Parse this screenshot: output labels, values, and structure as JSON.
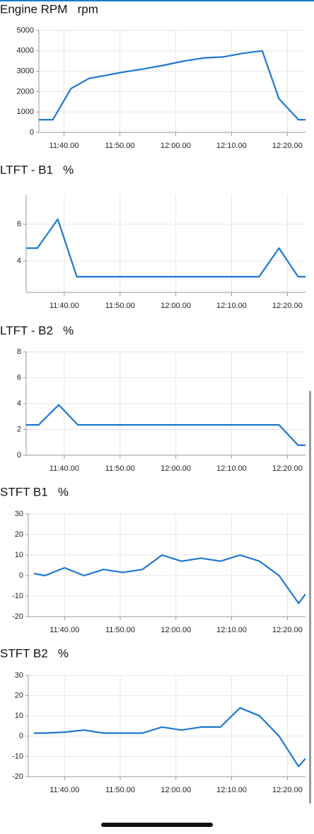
{
  "chart_data": [
    {
      "type": "line",
      "title": "Engine RPM   rpm",
      "color": "#1d78d2",
      "grid": true,
      "x": [
        "11:35.30",
        "11:38.00",
        "11:41.15",
        "11:44.30",
        "11:47.30",
        "11:50.30",
        "11:54.00",
        "11:58.00",
        "12:01.30",
        "12:05.00",
        "12:08.30",
        "12:12.00",
        "12:15.30",
        "12:18.30",
        "12:22.00",
        "12:23.15"
      ],
      "values": [
        620,
        620,
        2150,
        2650,
        2800,
        2950,
        3100,
        3300,
        3500,
        3650,
        3700,
        3880,
        4000,
        1650,
        620,
        620
      ],
      "xlim": [
        "11:35.30",
        "12:23.15"
      ],
      "xticks": [
        "11:40.00",
        "11:50.00",
        "12:00.00",
        "12:10.00",
        "12:20.00"
      ],
      "ylim": [
        0,
        5000
      ],
      "yticks": [
        0,
        1000,
        2000,
        3000,
        4000,
        5000
      ]
    },
    {
      "type": "line",
      "title": "LTFT - B1   %",
      "color": "#1d78d2",
      "grid": true,
      "x": [
        "11:33.10",
        "11:35.10",
        "11:38.50",
        "11:42.15",
        "12:14.55",
        "12:18.30",
        "12:21.55",
        "12:23.15"
      ],
      "values": [
        4.7,
        4.7,
        6.27,
        3.15,
        3.15,
        4.7,
        3.15,
        3.15
      ],
      "xlim": [
        "11:33.10",
        "12:23.15"
      ],
      "xticks": [
        "11:40.00",
        "11:50.00",
        "12:00.00",
        "12:10.00",
        "12:20.00"
      ],
      "ylim": [
        2.3,
        7.6
      ],
      "yticks": [
        4,
        6
      ]
    },
    {
      "type": "line",
      "title": "LTFT - B2   %",
      "color": "#1d78d2",
      "grid": true,
      "x": [
        "11:33.10",
        "11:35.25",
        "11:39.00",
        "11:42.25",
        "12:18.30",
        "12:21.55",
        "12:23.15"
      ],
      "values": [
        2.35,
        2.35,
        3.9,
        2.35,
        2.35,
        0.77,
        0.77
      ],
      "xlim": [
        "11:33.10",
        "12:23.15"
      ],
      "xticks": [
        "11:40.00",
        "11:50.00",
        "12:00.00",
        "12:10.00",
        "12:20.00"
      ],
      "ylim": [
        0,
        8
      ],
      "yticks": [
        0,
        2,
        4,
        6,
        8
      ]
    },
    {
      "type": "line",
      "title": "STFT B1   %",
      "color": "#1d78d2",
      "grid": true,
      "x": [
        "11:34.30",
        "11:36.30",
        "11:40.00",
        "11:43.30",
        "11:47.00",
        "11:50.30",
        "11:54.00",
        "11:57.30",
        "12:01.00",
        "12:04.30",
        "12:08.00",
        "12:11.30",
        "12:15.00",
        "12:18.30",
        "12:22.00",
        "12:23.15"
      ],
      "values": [
        1,
        0,
        3.8,
        0,
        3,
        1.5,
        3,
        10,
        7,
        8.5,
        7,
        10,
        7,
        0,
        -13.5,
        -9
      ],
      "xlim": [
        "11:33.30",
        "12:23.15"
      ],
      "xticks": [
        "11:40.00",
        "11:50.00",
        "12:00.00",
        "12:10.00",
        "12:20.00"
      ],
      "ylim": [
        -20,
        30
      ],
      "yticks": [
        -20,
        -10,
        0,
        10,
        20,
        30
      ]
    },
    {
      "type": "line",
      "title": "STFT B2   %",
      "color": "#1d78d2",
      "grid": true,
      "x": [
        "11:34.30",
        "11:36.30",
        "11:40.00",
        "11:43.30",
        "11:47.00",
        "11:50.30",
        "11:54.00",
        "11:57.30",
        "12:01.00",
        "12:04.30",
        "12:08.00",
        "12:11.30",
        "12:15.00",
        "12:18.30",
        "12:22.00",
        "12:23.15"
      ],
      "values": [
        1.5,
        1.5,
        2,
        3,
        1.5,
        1.5,
        1.5,
        4.5,
        3,
        4.5,
        4.5,
        14,
        10,
        0,
        -15,
        -11
      ],
      "xlim": [
        "11:33.30",
        "12:23.15"
      ],
      "xticks": [
        "11:40.00",
        "11:50.00",
        "12:00.00",
        "12:10.00",
        "12:20.00"
      ],
      "ylim": [
        -20,
        30
      ],
      "yticks": [
        -20,
        -10,
        0,
        10,
        20,
        30
      ]
    }
  ]
}
